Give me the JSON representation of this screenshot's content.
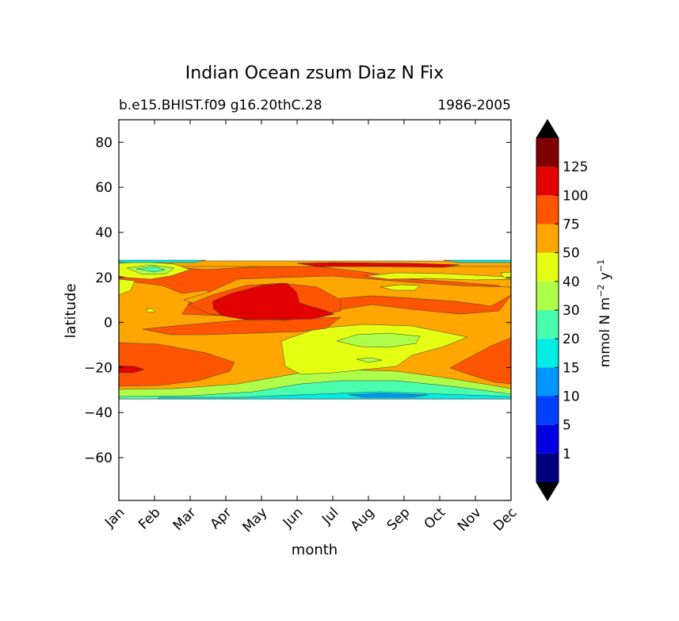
{
  "chart_data": {
    "type": "heatmap",
    "title": "Indian Ocean zsum Diaz N Fix",
    "subtitle_left": "b.e15.BHIST.f09 g16.20thC.28",
    "subtitle_right": "1986-2005",
    "xlabel": "month",
    "ylabel": "latitude",
    "x_ticks": [
      "Jan",
      "Feb",
      "Mar",
      "Apr",
      "May",
      "Jun",
      "Jul",
      "Aug",
      "Sep",
      "Oct",
      "Nov",
      "Dec"
    ],
    "ylim": [
      -79,
      90
    ],
    "y_ticks": [
      80,
      60,
      40,
      20,
      0,
      -20,
      -40,
      -60
    ],
    "y_tick_labels": [
      "80",
      "60",
      "40",
      "20",
      "0",
      "−20",
      "−40",
      "−60"
    ],
    "data_lat_range": [
      -34,
      27
    ],
    "colorbar": {
      "label": "mmol N m⁻² y⁻¹",
      "label_main": "mmol N m",
      "label_exp1": "−2",
      "label_mid": " y",
      "label_exp2": "−1",
      "extend": "both",
      "levels": [
        0,
        1,
        5,
        10,
        15,
        20,
        30,
        40,
        50,
        75,
        100,
        125,
        150
      ],
      "tick_labels": [
        "1",
        "5",
        "10",
        "15",
        "20",
        "30",
        "40",
        "50",
        "75",
        "100",
        "125"
      ],
      "colors": [
        "#00007f",
        "#0000e3",
        "#0040ff",
        "#0096ff",
        "#00ece4",
        "#49ffad",
        "#adff49",
        "#e4ff12",
        "#ffa600",
        "#ff5500",
        "#e30000",
        "#7f0000"
      ],
      "under_color": "#000000",
      "over_color": "#000000"
    },
    "fields": [
      {
        "band": "75-100",
        "comment": "broad region 5N-25N spring, southern belt -10 to -30 winter"
      },
      {
        "band": "100-125",
        "comment": "core centred ~10N in May-Jun, patch near -20 in Jan, thin strip 25N Jul-Sep"
      },
      {
        "band": "40-50",
        "comment": "tongue -5 to -30 Jun-Oct, 20N band Aug-Dec"
      },
      {
        "band": "30-40",
        "comment": "patch -8 Aug-Sep, southern edge band -30"
      },
      {
        "band": "20-30",
        "comment": "southern edge -32, northern edge 25N Jan-Feb"
      },
      {
        "band": "15-20",
        "comment": "thin strips at 27N and -33"
      }
    ]
  }
}
